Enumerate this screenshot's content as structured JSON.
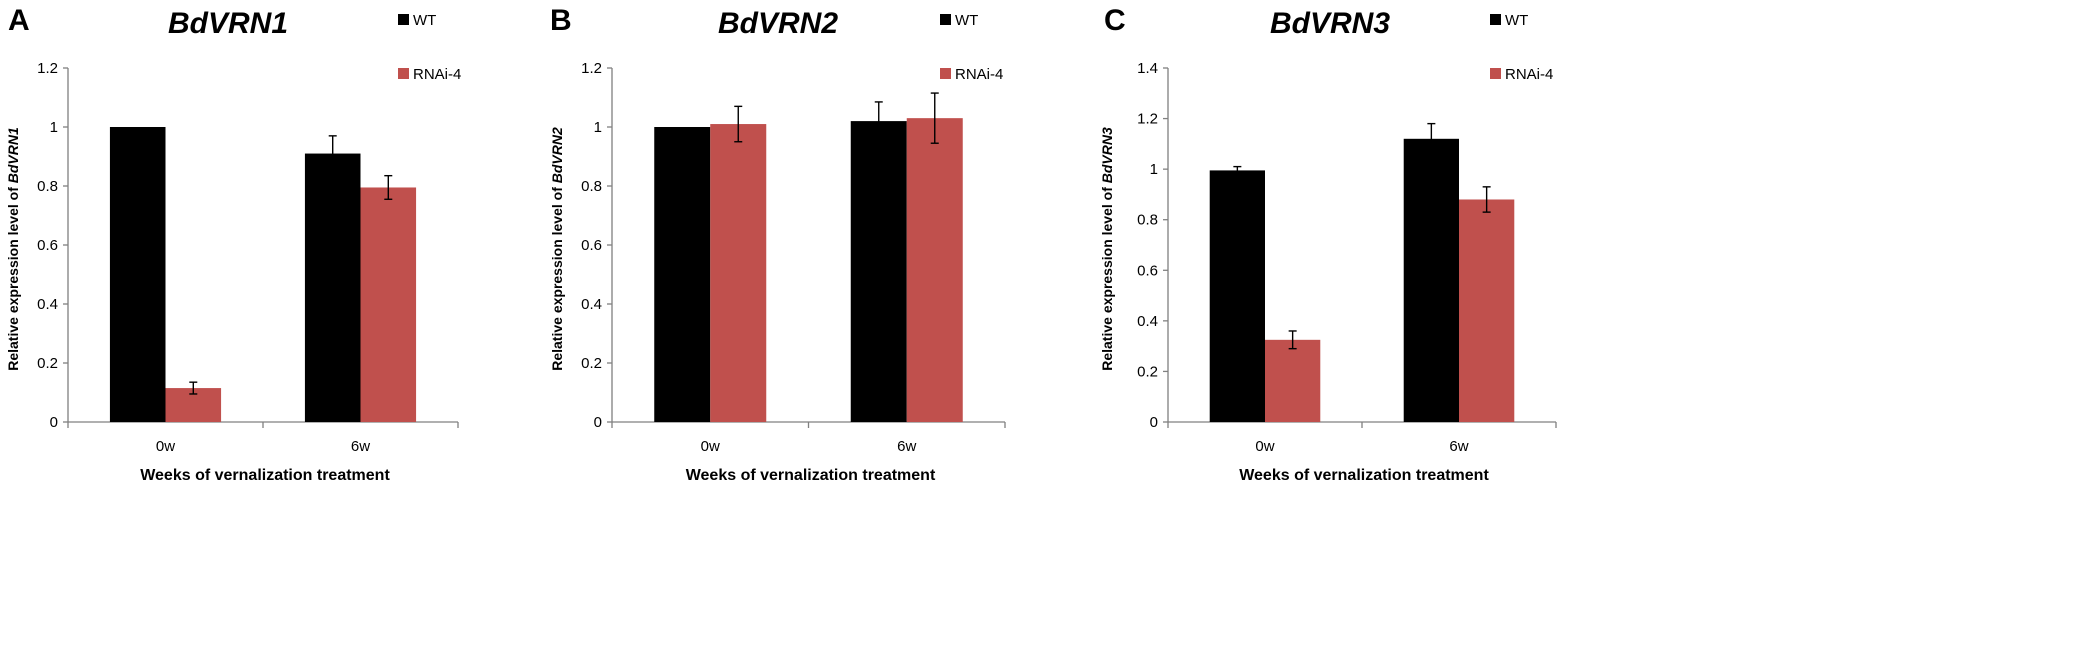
{
  "colors": {
    "wt": "#000000",
    "rnai": "#c0504d",
    "axis": "#808080",
    "text": "#000000"
  },
  "chart_data": [
    {
      "type": "bar",
      "panel_letter": "A",
      "title": "BdVRN1",
      "ylabel_prefix": "Relative expression level of ",
      "ylabel_gene": "BdVRN1",
      "xlabel": "Weeks of vernalization treatment",
      "categories": [
        "0w",
        "6w"
      ],
      "ylim": [
        0,
        1.2
      ],
      "yticks": [
        "0",
        "0.2",
        "0.4",
        "0.6",
        "0.8",
        "1",
        "1.2"
      ],
      "legend_position": "top-right",
      "series": [
        {
          "name": "WT",
          "values": [
            1.0,
            0.91
          ],
          "errors": [
            0,
            0.06
          ]
        },
        {
          "name": "RNAi-4",
          "values": [
            0.115,
            0.795
          ],
          "errors": [
            0.02,
            0.04
          ]
        }
      ]
    },
    {
      "type": "bar",
      "panel_letter": "B",
      "title": "BdVRN2",
      "ylabel_prefix": "Relative expression level of ",
      "ylabel_gene": "BdVRN2",
      "xlabel": "Weeks of vernalization treatment",
      "categories": [
        "0w",
        "6w"
      ],
      "ylim": [
        0,
        1.2
      ],
      "yticks": [
        "0",
        "0.2",
        "0.4",
        "0.6",
        "0.8",
        "1",
        "1.2"
      ],
      "legend_position": "top-right",
      "series": [
        {
          "name": "WT",
          "values": [
            1.0,
            1.02
          ],
          "errors": [
            0,
            0.065
          ]
        },
        {
          "name": "RNAi-4",
          "values": [
            1.01,
            1.03
          ],
          "errors": [
            0.06,
            0.085
          ]
        }
      ]
    },
    {
      "type": "bar",
      "panel_letter": "C",
      "title": "BdVRN3",
      "ylabel_prefix": "Relative expression level of ",
      "ylabel_gene": "BdVRN3",
      "xlabel": "Weeks of vernalization treatment",
      "categories": [
        "0w",
        "6w"
      ],
      "ylim": [
        0,
        1.4
      ],
      "yticks": [
        "0",
        "0.2",
        "0.4",
        "0.6",
        "0.8",
        "1",
        "1.2",
        "1.4"
      ],
      "legend_position": "top-right",
      "series": [
        {
          "name": "WT",
          "values": [
            0.995,
            1.12
          ],
          "errors": [
            0.015,
            0.06
          ]
        },
        {
          "name": "RNAi-4",
          "values": [
            0.325,
            0.88
          ],
          "errors": [
            0.035,
            0.05
          ]
        }
      ]
    }
  ]
}
